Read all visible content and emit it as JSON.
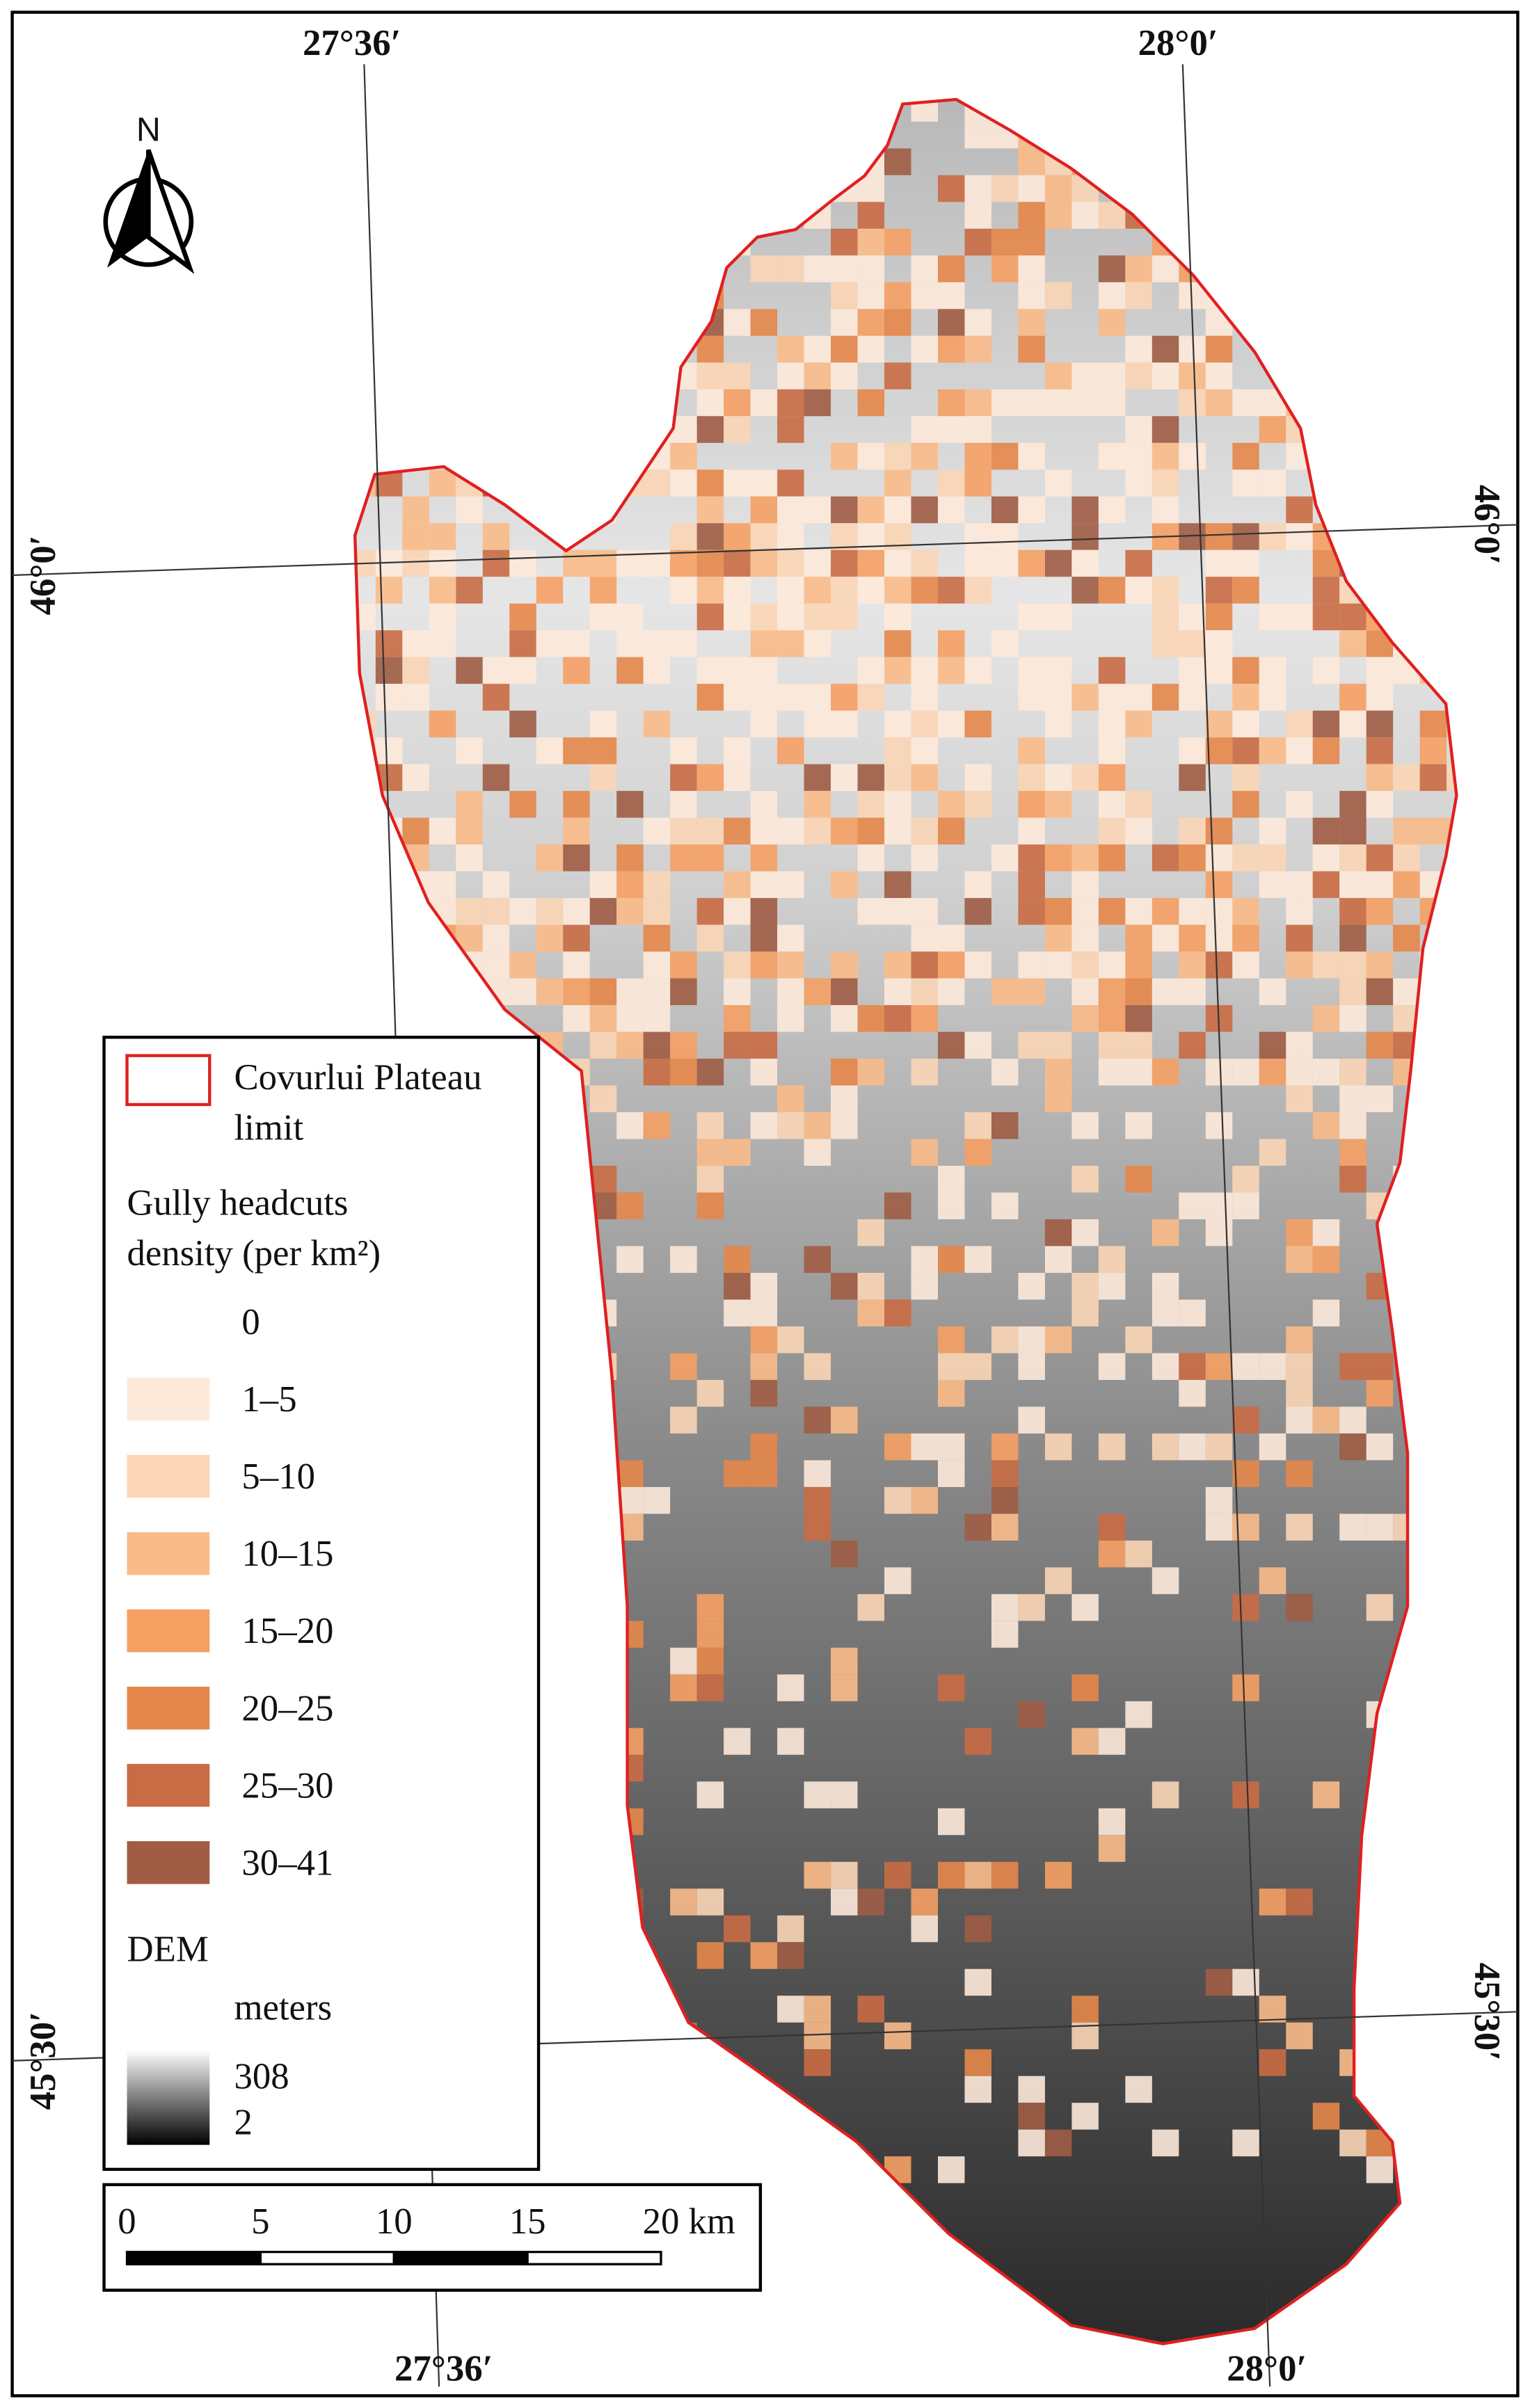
{
  "map": {
    "graticule": {
      "top": [
        "27°36′",
        "28°0′"
      ],
      "bottom": [
        "27°36′",
        "28°0′"
      ],
      "left": [
        "46°0′",
        "45°30′"
      ],
      "right": [
        "46°0′",
        "45°30′"
      ]
    },
    "north": "N",
    "legend": {
      "limit": [
        "Covurlui Plateau",
        "limit"
      ],
      "density_title": [
        "Gully headcuts",
        "density (per km²)"
      ],
      "classes": [
        {
          "label": "0"
        },
        {
          "label": "1–5",
          "color": "#fde9da"
        },
        {
          "label": "5–10",
          "color": "#fbd5b5"
        },
        {
          "label": "10–15",
          "color": "#f9bb88"
        },
        {
          "label": "15–20",
          "color": "#f5a063"
        },
        {
          "label": "20–25",
          "color": "#e5864a"
        },
        {
          "label": "25–30",
          "color": "#c96b44"
        },
        {
          "label": "30–41",
          "color": "#a05c44"
        }
      ],
      "dem": {
        "title": "DEM",
        "unit": "meters",
        "max": "308",
        "min": "2"
      }
    },
    "scale": {
      "ticks": [
        "0",
        "5",
        "10",
        "15",
        "20 km"
      ]
    }
  }
}
